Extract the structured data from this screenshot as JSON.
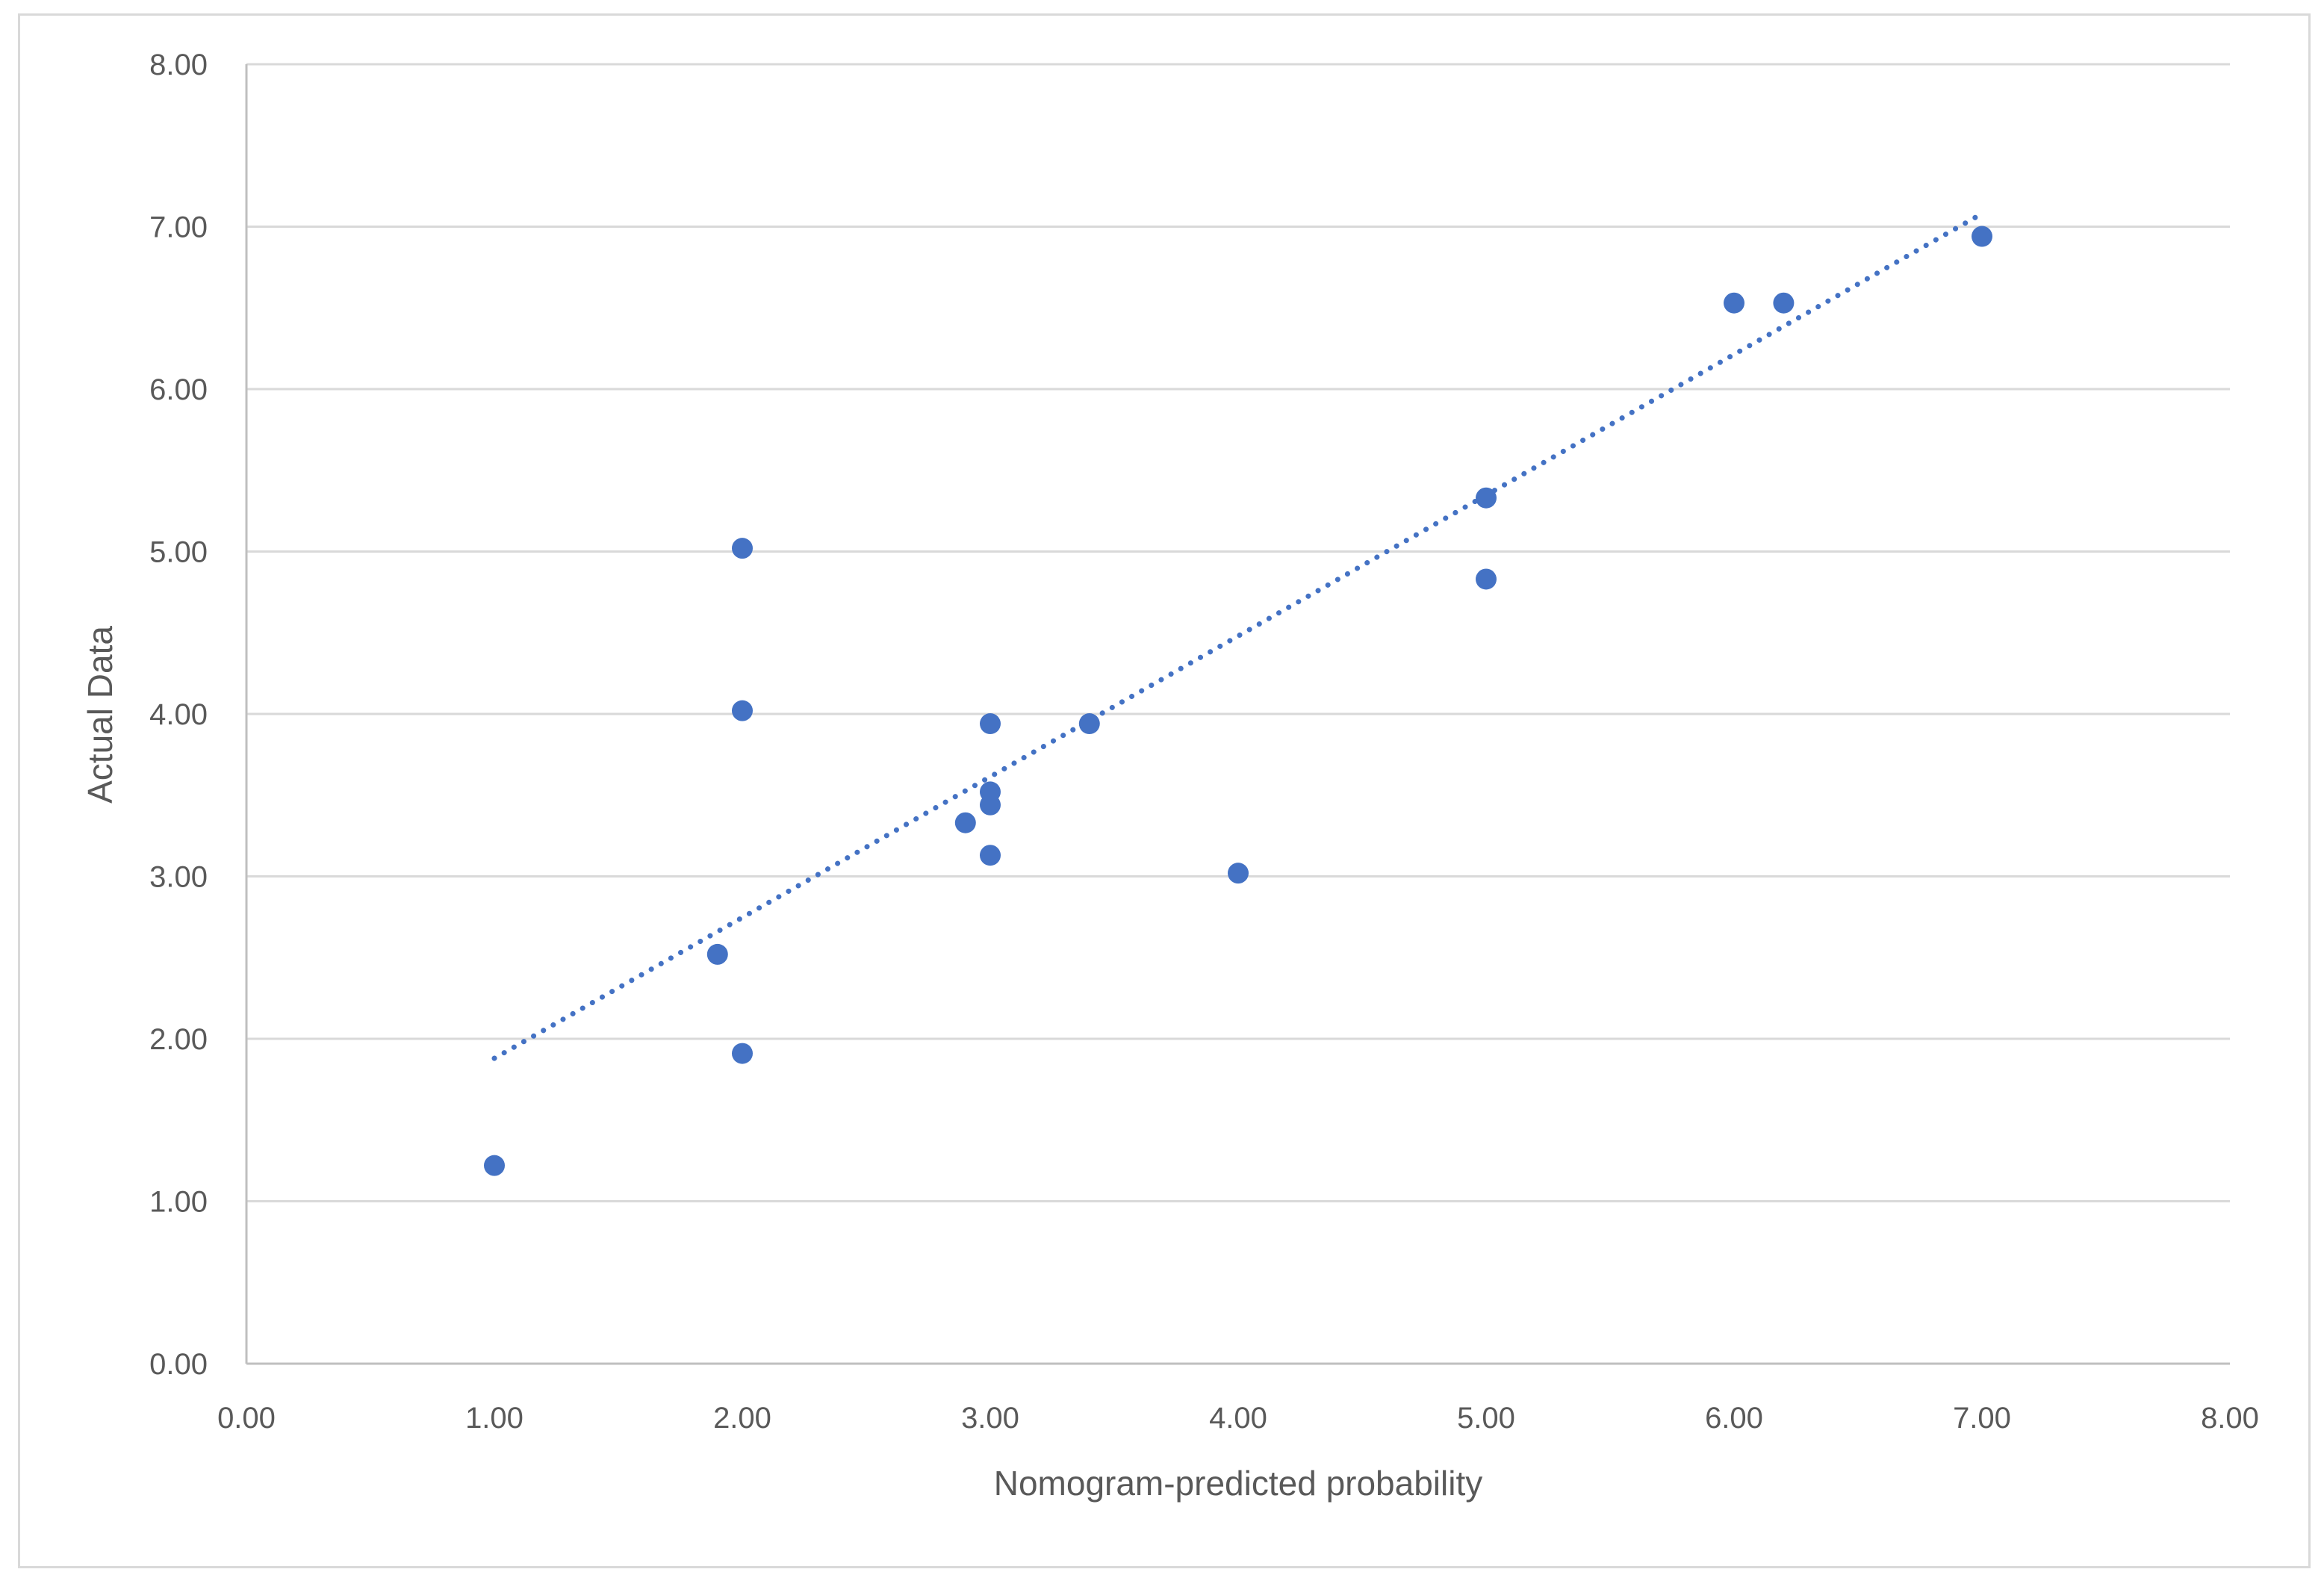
{
  "chart_data": {
    "type": "scatter",
    "title": "",
    "xlabel": "Nomogram-predicted probability",
    "ylabel": "Actual Data",
    "xlim": [
      0,
      8
    ],
    "ylim": [
      0,
      8
    ],
    "x_ticks": [
      "0.00",
      "1.00",
      "2.00",
      "3.00",
      "4.00",
      "5.00",
      "6.00",
      "7.00",
      "8.00"
    ],
    "y_ticks": [
      "0.00",
      "1.00",
      "2.00",
      "3.00",
      "4.00",
      "5.00",
      "6.00",
      "7.00",
      "8.00"
    ],
    "grid": "horizontal",
    "legend": "none",
    "marker_color": "#4472C4",
    "trendline_color": "#4472C4",
    "series": [
      {
        "name": "Actual Data",
        "points": [
          {
            "x": 1.0,
            "y": 1.22
          },
          {
            "x": 1.9,
            "y": 2.52
          },
          {
            "x": 2.0,
            "y": 1.91
          },
          {
            "x": 2.0,
            "y": 4.02
          },
          {
            "x": 2.0,
            "y": 5.02
          },
          {
            "x": 2.9,
            "y": 3.33
          },
          {
            "x": 3.0,
            "y": 3.13
          },
          {
            "x": 3.0,
            "y": 3.44
          },
          {
            "x": 3.0,
            "y": 3.52
          },
          {
            "x": 3.0,
            "y": 3.94
          },
          {
            "x": 3.4,
            "y": 3.94
          },
          {
            "x": 4.0,
            "y": 3.02
          },
          {
            "x": 5.0,
            "y": 4.83
          },
          {
            "x": 5.0,
            "y": 5.33
          },
          {
            "x": 6.0,
            "y": 6.53
          },
          {
            "x": 6.2,
            "y": 6.53
          },
          {
            "x": 7.0,
            "y": 6.94
          }
        ]
      }
    ],
    "trendline": {
      "style": "dotted",
      "x_start": 1.0,
      "y_start": 1.88,
      "x_end": 7.0,
      "y_end": 7.08
    }
  }
}
